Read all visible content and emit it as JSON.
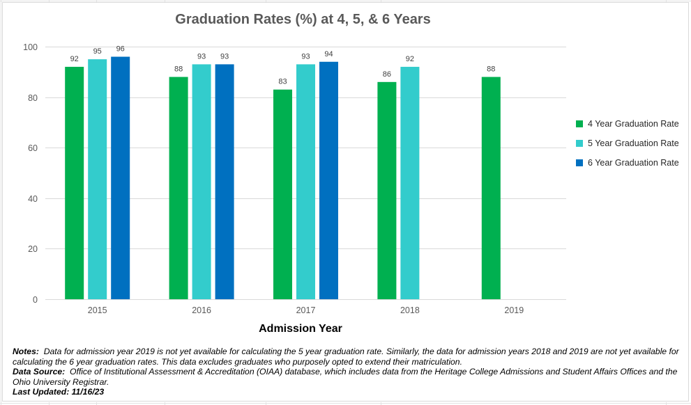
{
  "chart_data": {
    "type": "bar",
    "title": "Graduation Rates (%) at 4, 5, & 6 Years",
    "xlabel": "Admission Year",
    "ylabel": "",
    "categories": [
      "2015",
      "2016",
      "2017",
      "2018",
      "2019"
    ],
    "ylim": [
      0,
      100
    ],
    "yticks": [
      "0",
      "20",
      "40",
      "60",
      "80",
      "100"
    ],
    "grid": true,
    "legend_position": "right",
    "series": [
      {
        "name": "4 Year Graduation Rate",
        "color": "#00b050",
        "values": [
          92,
          88,
          83,
          86,
          88
        ]
      },
      {
        "name": "5 Year Graduation Rate",
        "color": "#33cccc",
        "values": [
          95,
          93,
          93,
          92,
          null
        ]
      },
      {
        "name": "6 Year Graduation Rate",
        "color": "#0070c0",
        "values": [
          96,
          93,
          94,
          null,
          null
        ]
      }
    ]
  },
  "notes": {
    "notes_label": "Notes:",
    "notes_text": "Data for admission year 2019 is not yet available for calculating the 5 year graduation rate. Similarly, the data for admission years 2018 and 2019 are not yet available for calculating the 6 year graduation rates. This data excludes graduates who purposely opted to extend their matriculation.",
    "source_label": "Data Source:",
    "source_text": "Office of Institutional Assessment & Accreditation (OIAA) database, which includes data from the Heritage College Admissions and Student Affairs Offices and the Ohio University Registrar.",
    "updated_label": "Last Updated: 11/16/23"
  }
}
